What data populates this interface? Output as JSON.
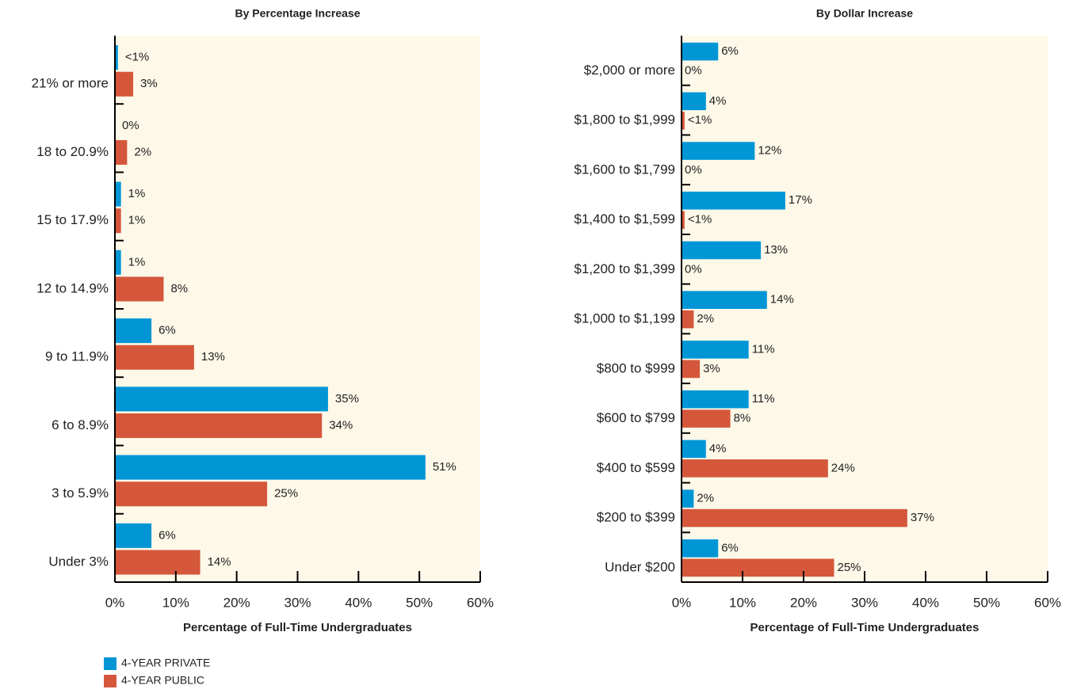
{
  "chart_data": [
    {
      "type": "bar",
      "orientation": "horizontal",
      "title": "By Percentage Increase",
      "xlabel": "Percentage of Full-Time Undergraduates",
      "categories": [
        "21% or more",
        "18 to 20.9%",
        "15 to 17.9%",
        "12 to 14.9%",
        "9 to 11.9%",
        "6 to 8.9%",
        "3 to 5.9%",
        "Under 3%"
      ],
      "series": [
        {
          "name": "4-YEAR PRIVATE",
          "color": "#0096d6",
          "values": [
            0.5,
            0,
            1,
            1,
            6,
            35,
            51,
            6
          ],
          "value_labels": [
            "<1%",
            "0%",
            "1%",
            "1%",
            "6%",
            "35%",
            "51%",
            "6%"
          ]
        },
        {
          "name": "4-YEAR PUBLIC",
          "color": "#d5573b",
          "values": [
            3,
            2,
            1,
            8,
            13,
            34,
            25,
            14
          ],
          "value_labels": [
            "3%",
            "2%",
            "1%",
            "8%",
            "13%",
            "34%",
            "25%",
            "14%"
          ]
        }
      ],
      "xlim": [
        0,
        60
      ],
      "xticks": [
        {
          "value": 0,
          "label": "0%"
        },
        {
          "value": 10,
          "label": "10%"
        },
        {
          "value": 20,
          "label": "20%"
        },
        {
          "value": 30,
          "label": "30%"
        },
        {
          "value": 40,
          "label": "40%"
        },
        {
          "value": 50,
          "label": "50%"
        },
        {
          "value": 60,
          "label": "60%"
        }
      ]
    },
    {
      "type": "bar",
      "orientation": "horizontal",
      "title": "By Dollar Increase",
      "xlabel": "Percentage of Full-Time Undergraduates",
      "categories": [
        "$2,000 or more",
        "$1,800 to $1,999",
        "$1,600 to $1,799",
        "$1,400 to $1,599",
        "$1,200 to $1,399",
        "$1,000 to $1,199",
        "$800 to $999",
        "$600 to $799",
        "$400 to $599",
        "$200 to $399",
        "Under $200"
      ],
      "series": [
        {
          "color": "#0096d6",
          "values": [
            6,
            4,
            12,
            17,
            13,
            14,
            11,
            11,
            4,
            2,
            6
          ],
          "value_labels": [
            "6%",
            "4%",
            "12%",
            "17%",
            "13%",
            "14%",
            "11%",
            "11%",
            "4%",
            "2%",
            "6%"
          ]
        },
        {
          "color": "#d5573b",
          "values": [
            0,
            0.5,
            0,
            0.5,
            0,
            2,
            3,
            8,
            24,
            37,
            25
          ],
          "value_labels": [
            "0%",
            "<1%",
            "0%",
            "<1%",
            "0%",
            "2%",
            "3%",
            "8%",
            "24%",
            "37%",
            "25%"
          ]
        }
      ],
      "xlim": [
        0,
        60
      ],
      "xticks": [
        {
          "value": 0,
          "label": "0%"
        },
        {
          "value": 10,
          "label": "10%"
        },
        {
          "value": 20,
          "label": "20%"
        },
        {
          "value": 30,
          "label": "30%"
        },
        {
          "value": 40,
          "label": "40%"
        },
        {
          "value": 50,
          "label": "50%"
        },
        {
          "value": 60,
          "label": "60%"
        }
      ]
    }
  ]
}
